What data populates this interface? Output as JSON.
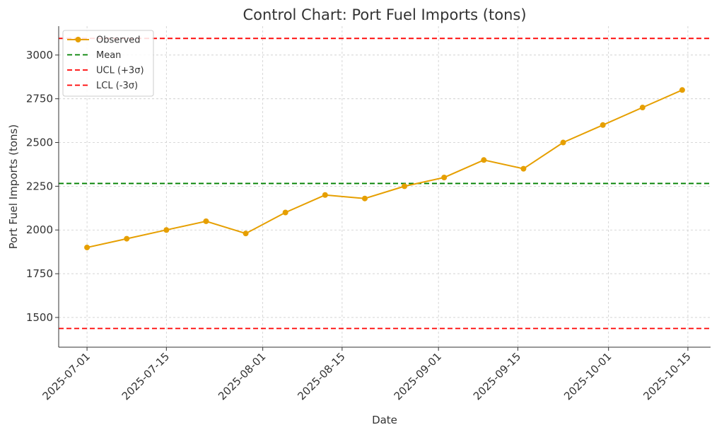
{
  "chart_data": {
    "type": "line",
    "title": "Control Chart: Port Fuel Imports (tons)",
    "xlabel": "Date",
    "ylabel": "Port Fuel Imports (tons)",
    "x": [
      "2025-07-01",
      "2025-07-08",
      "2025-07-15",
      "2025-07-22",
      "2025-07-29",
      "2025-08-05",
      "2025-08-12",
      "2025-08-19",
      "2025-08-26",
      "2025-09-02",
      "2025-09-09",
      "2025-09-16",
      "2025-09-23",
      "2025-09-30",
      "2025-10-07",
      "2025-10-14"
    ],
    "series": [
      {
        "name": "Observed",
        "color": "#E69F00",
        "values": [
          1900,
          1950,
          2000,
          2050,
          1980,
          2100,
          2200,
          2180,
          2250,
          2300,
          2400,
          2350,
          2500,
          2600,
          2700,
          2800
        ]
      }
    ],
    "reference_lines": [
      {
        "name": "Mean",
        "value": 2266,
        "color": "#008000",
        "style": "dashed"
      },
      {
        "name": "UCL (+3σ)",
        "value": 3095,
        "color": "#FF0000",
        "style": "dashed"
      },
      {
        "name": "LCL (-3σ)",
        "value": 1437,
        "color": "#FF0000",
        "style": "dashed"
      }
    ],
    "xlim": [
      "2025-06-26",
      "2025-10-19"
    ],
    "ylim": [
      1330,
      3165
    ],
    "yticks": [
      1500,
      1750,
      2000,
      2250,
      2500,
      2750,
      3000
    ],
    "xticks": [
      "2025-07-01",
      "2025-07-15",
      "2025-08-01",
      "2025-08-15",
      "2025-09-01",
      "2025-09-15",
      "2025-10-01",
      "2025-10-15"
    ],
    "grid": true,
    "legend_position": "top-left"
  }
}
